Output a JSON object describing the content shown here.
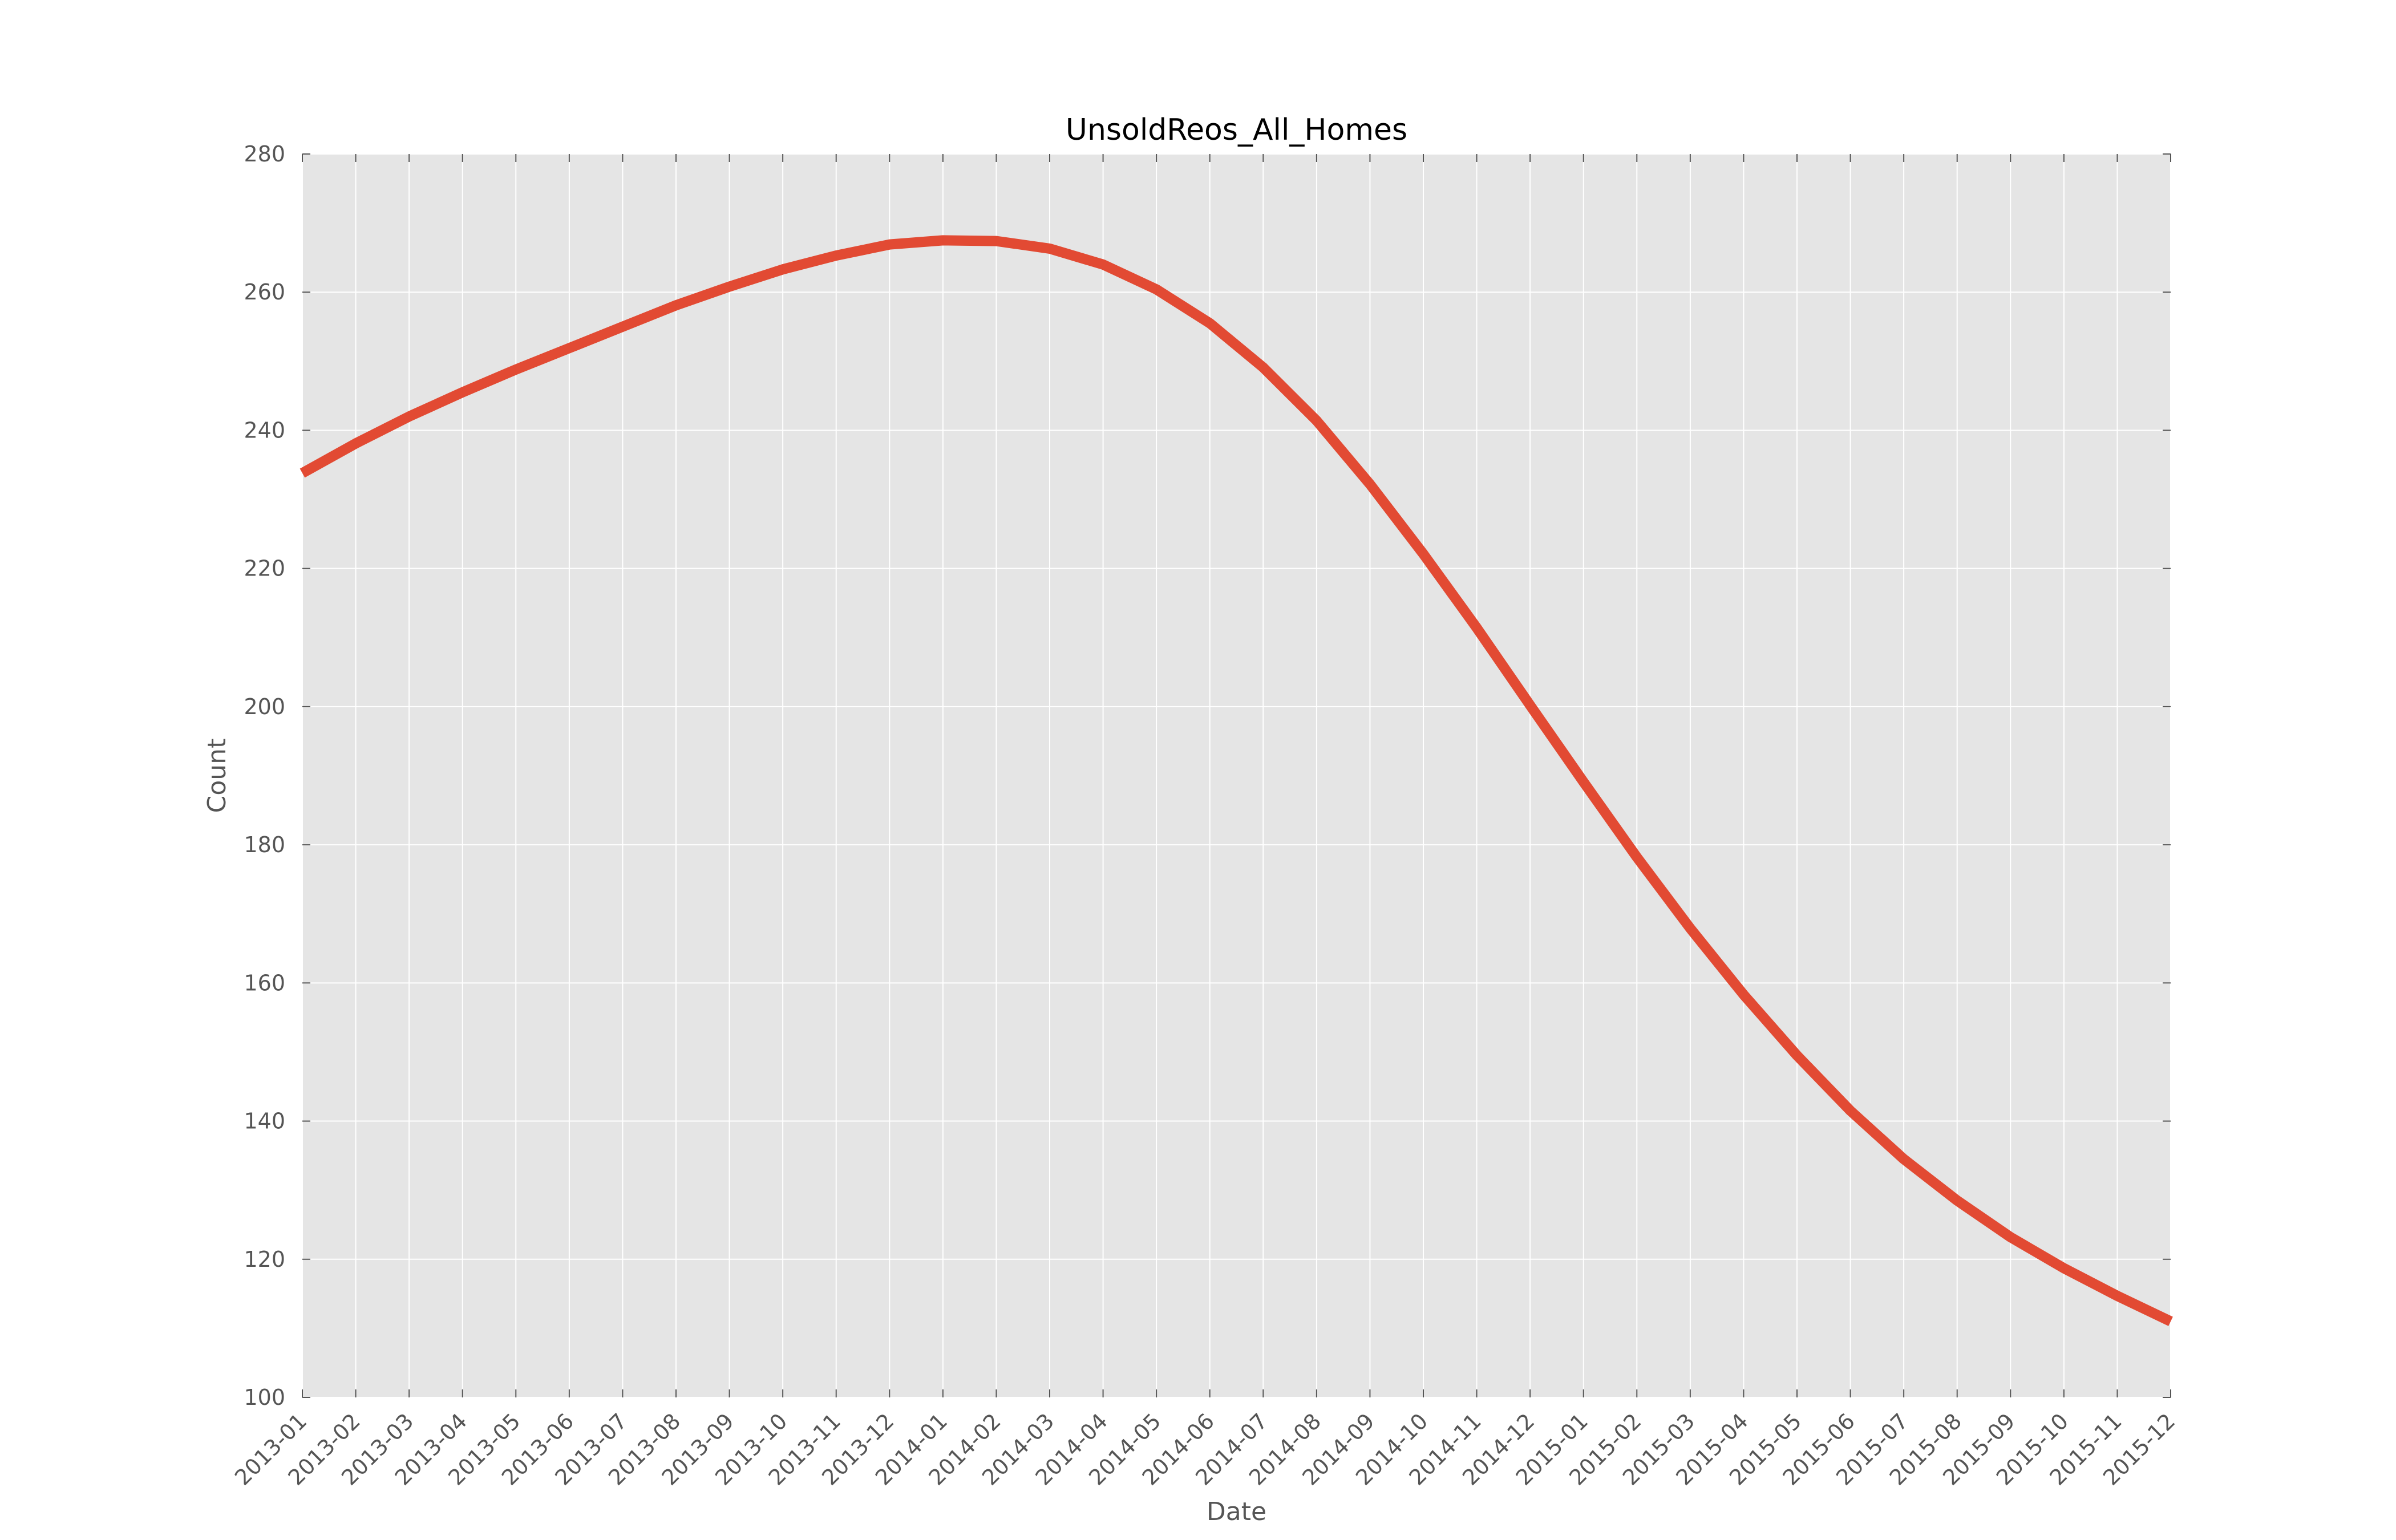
{
  "chart_data": {
    "type": "line",
    "title": "UnsoldReos_All_Homes",
    "xlabel": "Date",
    "ylabel": "Count",
    "ylim": [
      100,
      280
    ],
    "yticks": [
      100,
      120,
      140,
      160,
      180,
      200,
      220,
      240,
      260,
      280
    ],
    "grid": true,
    "legend": "none",
    "background_color": "#e5e5e5",
    "grid_color": "#ffffff",
    "line_color": "#e24a33",
    "categories": [
      "2013-01",
      "2013-02",
      "2013-03",
      "2013-04",
      "2013-05",
      "2013-06",
      "2013-07",
      "2013-08",
      "2013-09",
      "2013-10",
      "2013-11",
      "2013-12",
      "2014-01",
      "2014-02",
      "2014-03",
      "2014-04",
      "2014-05",
      "2014-06",
      "2014-07",
      "2014-08",
      "2014-09",
      "2014-10",
      "2014-11",
      "2014-12",
      "2015-01",
      "2015-02",
      "2015-03",
      "2015-04",
      "2015-05",
      "2015-06",
      "2015-07",
      "2015-08",
      "2015-09",
      "2015-10",
      "2015-11",
      "2015-12"
    ],
    "series": [
      {
        "values": [
          233.8,
          238.1,
          242.0,
          245.5,
          248.8,
          251.9,
          255.0,
          258.1,
          260.8,
          263.3,
          265.3,
          266.9,
          267.5,
          267.4,
          266.3,
          264.0,
          260.4,
          255.5,
          249.1,
          241.4,
          232.2,
          222.1,
          211.4,
          200.2,
          189.1,
          178.2,
          167.9,
          158.3,
          149.5,
          141.5,
          134.5,
          128.5,
          123.2,
          118.7,
          114.7,
          111.0
        ]
      }
    ]
  }
}
